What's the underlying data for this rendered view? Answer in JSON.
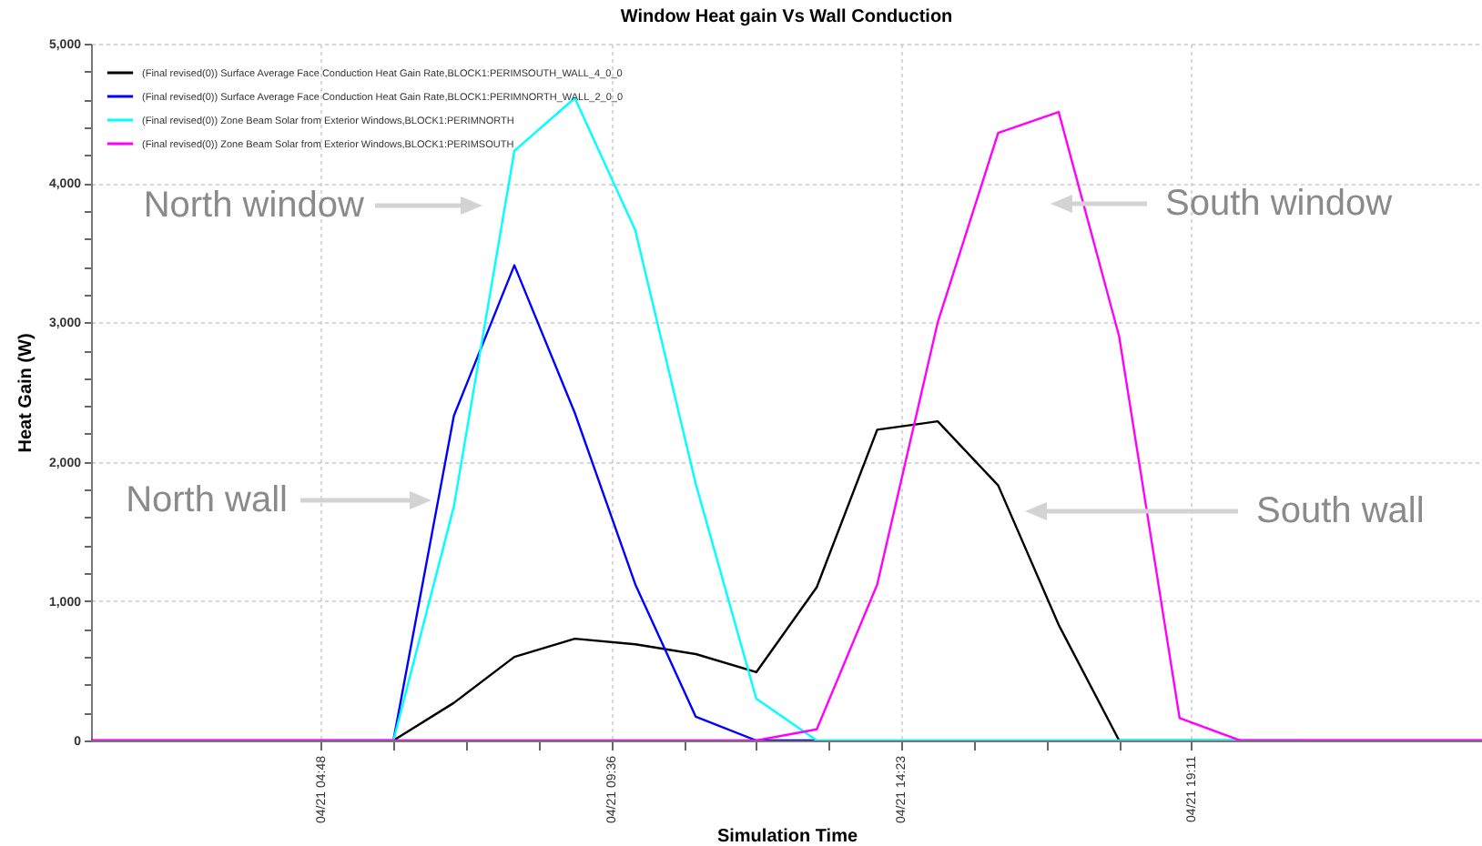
{
  "chart_data": {
    "type": "line",
    "title": "Window Heat gain Vs Wall Conduction",
    "xlabel": "Simulation Time",
    "ylabel": "Heat Gain (W)",
    "x": [
      "--04-21T01:00",
      "--04-21T02:00",
      "--04-21T03:00",
      "--04-21T04:00",
      "--04-21T05:00",
      "--04-21T06:00",
      "--04-21T07:00",
      "--04-21T08:00",
      "--04-21T09:00",
      "--04-21T10:00",
      "--04-21T11:00",
      "--04-21T12:00",
      "--04-21T13:00",
      "--04-21T14:00",
      "--04-21T15:00",
      "--04-21T16:00",
      "--04-21T17:00",
      "--04-21T18:00",
      "--04-21T19:00",
      "--04-21T20:00",
      "--04-21T21:00",
      "--04-21T22:00",
      "--04-21T23:00",
      "--04-22T00:00"
    ],
    "series": [
      {
        "name": "(Final revised(0)) Surface Average Face Conduction Heat Gain Rate,BLOCK1:PERIMSOUTH_WALL_4_0_0",
        "color": "#000000",
        "values": [
          0,
          0,
          0,
          0,
          0,
          0,
          270,
          600,
          730,
          690,
          620,
          490,
          1100,
          2230,
          2290,
          1830,
          830,
          0,
          0,
          0,
          0,
          0,
          0,
          0
        ]
      },
      {
        "name": "(Final revised(0)) Surface Average Face Conduction Heat Gain Rate,BLOCK1:PERIMNORTH_WALL_2_0_0",
        "color": "#0000ff",
        "values": [
          null,
          null,
          null,
          null,
          null,
          0,
          2330,
          3410,
          2350,
          1120,
          170,
          0,
          0,
          null,
          null,
          null,
          null,
          null,
          null,
          null,
          null,
          null,
          null,
          null
        ]
      },
      {
        "name": "(Final revised(0)) Zone Beam Solar from Exterior Windows,BLOCK1:PERIMNORTH",
        "color": "#00ffff",
        "values": [
          null,
          null,
          null,
          null,
          0,
          0,
          1680,
          4230,
          4610,
          3660,
          1840,
          300,
          0,
          0,
          0,
          0,
          0,
          0,
          0,
          0,
          0,
          null,
          null,
          null
        ]
      },
      {
        "name": "(Final revised(0)) Zone Beam Solar from Exterior Windows,BLOCK1:PERIMSOUTH",
        "color": "#ff00ff",
        "values": [
          0,
          0,
          0,
          0,
          0,
          0,
          0,
          0,
          0,
          0,
          0,
          0,
          80,
          1120,
          3000,
          4360,
          4510,
          2900,
          160,
          0,
          0,
          0,
          0,
          0
        ]
      }
    ],
    "xlim": [
      "--04-21T01:00",
      "--04-22T00:00"
    ],
    "xticks": [
      {
        "value": "--04-21T04:48",
        "label": "04/21 04:48"
      },
      {
        "value": "--04-21T06:00",
        "label": null
      },
      {
        "value": "--04-21T07:12",
        "label": null
      },
      {
        "value": "--04-21T08:24",
        "label": null
      },
      {
        "value": "--04-21T09:36",
        "label": "04/21 09:36"
      },
      {
        "value": "--04-21T10:48",
        "label": null
      },
      {
        "value": "--04-21T12:00",
        "label": null
      },
      {
        "value": "--04-21T13:12",
        "label": null
      },
      {
        "value": "--04-21T14:23",
        "label": "04/21 14:23"
      },
      {
        "value": "--04-21T15:36",
        "label": null
      },
      {
        "value": "--04-21T16:48",
        "label": null
      },
      {
        "value": "--04-21T18:00",
        "label": null
      },
      {
        "value": "--04-21T19:11",
        "label": "04/21 19:11"
      }
    ],
    "ylim": [
      0,
      5000
    ],
    "yticks": [
      {
        "value": 0,
        "label": "0"
      },
      {
        "value": 200,
        "label": null
      },
      {
        "value": 400,
        "label": null
      },
      {
        "value": 600,
        "label": null
      },
      {
        "value": 800,
        "label": null
      },
      {
        "value": 1000,
        "label": "1,000"
      },
      {
        "value": 1200,
        "label": null
      },
      {
        "value": 1400,
        "label": null
      },
      {
        "value": 1600,
        "label": null
      },
      {
        "value": 1800,
        "label": null
      },
      {
        "value": 2000,
        "label": "2,000"
      },
      {
        "value": 2200,
        "label": null
      },
      {
        "value": 2400,
        "label": null
      },
      {
        "value": 2600,
        "label": null
      },
      {
        "value": 2800,
        "label": null
      },
      {
        "value": 3000,
        "label": "3,000"
      },
      {
        "value": 3200,
        "label": null
      },
      {
        "value": 3400,
        "label": null
      },
      {
        "value": 3600,
        "label": null
      },
      {
        "value": 3800,
        "label": null
      },
      {
        "value": 4000,
        "label": "4,000"
      },
      {
        "value": 4200,
        "label": null
      },
      {
        "value": 4400,
        "label": null
      },
      {
        "value": 4600,
        "label": null
      },
      {
        "value": 4800,
        "label": null
      },
      {
        "value": 5000,
        "label": "5,000"
      }
    ],
    "grid": true,
    "legend": "top left",
    "annotations": [
      "North window",
      "North wall",
      "South window",
      "South wall"
    ]
  }
}
